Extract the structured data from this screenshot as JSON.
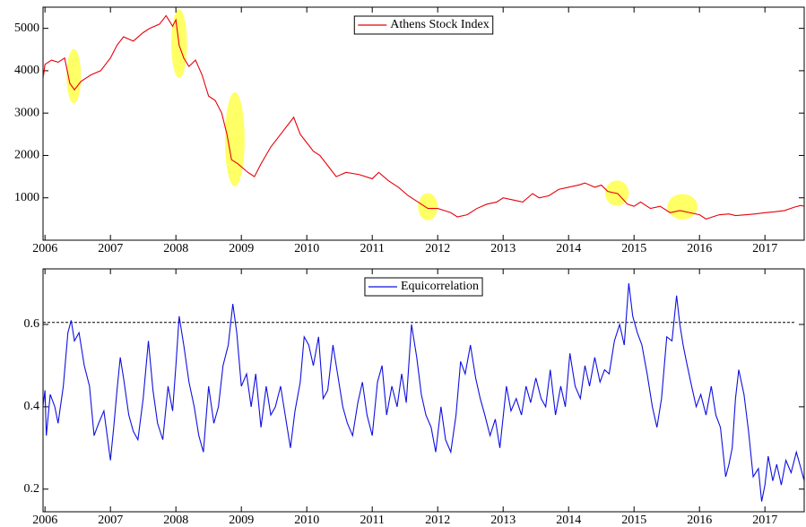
{
  "chart_data": [
    {
      "type": "line",
      "legend": "top",
      "xlim": [
        2005.97,
        2017.6
      ],
      "ylim": [
        0,
        5500
      ],
      "xticks": [
        2006,
        2007,
        2008,
        2009,
        2010,
        2011,
        2012,
        2013,
        2014,
        2015,
        2016,
        2017
      ],
      "yticks": [
        1000,
        2000,
        3000,
        4000,
        5000
      ],
      "x": [
        2005.97,
        2006.0,
        2006.1,
        2006.2,
        2006.3,
        2006.38,
        2006.45,
        2006.55,
        2006.7,
        2006.85,
        2007.0,
        2007.1,
        2007.2,
        2007.35,
        2007.5,
        2007.6,
        2007.75,
        2007.85,
        2007.95,
        2008.0,
        2008.05,
        2008.12,
        2008.2,
        2008.3,
        2008.4,
        2008.5,
        2008.6,
        2008.7,
        2008.78,
        2008.85,
        2008.95,
        2009.1,
        2009.2,
        2009.3,
        2009.45,
        2009.6,
        2009.75,
        2009.8,
        2009.9,
        2010.0,
        2010.1,
        2010.2,
        2010.35,
        2010.45,
        2010.6,
        2010.8,
        2011.0,
        2011.1,
        2011.25,
        2011.4,
        2011.55,
        2011.7,
        2011.85,
        2012.0,
        2012.1,
        2012.2,
        2012.3,
        2012.45,
        2012.6,
        2012.75,
        2012.9,
        2013.0,
        2013.15,
        2013.3,
        2013.45,
        2013.55,
        2013.7,
        2013.85,
        2014.0,
        2014.15,
        2014.25,
        2014.4,
        2014.5,
        2014.6,
        2014.75,
        2014.9,
        2015.0,
        2015.1,
        2015.25,
        2015.4,
        2015.55,
        2015.7,
        2015.85,
        2016.0,
        2016.1,
        2016.2,
        2016.3,
        2016.45,
        2016.55,
        2016.7,
        2016.85,
        2017.0,
        2017.15,
        2017.3,
        2017.45,
        2017.55,
        2017.6
      ],
      "series": [
        {
          "name": "Athens Stock Index",
          "color": "#e8000b",
          "values": [
            3800,
            4150,
            4250,
            4200,
            4300,
            3700,
            3550,
            3750,
            3900,
            4000,
            4300,
            4600,
            4800,
            4700,
            4900,
            5000,
            5100,
            5300,
            5050,
            5200,
            4600,
            4300,
            4100,
            4250,
            3900,
            3400,
            3300,
            3000,
            2500,
            1900,
            1800,
            1600,
            1500,
            1800,
            2200,
            2500,
            2800,
            2900,
            2500,
            2300,
            2100,
            2000,
            1700,
            1500,
            1600,
            1550,
            1450,
            1600,
            1400,
            1250,
            1050,
            900,
            750,
            750,
            700,
            650,
            550,
            600,
            750,
            850,
            900,
            1000,
            950,
            900,
            1100,
            1000,
            1050,
            1200,
            1250,
            1300,
            1350,
            1250,
            1300,
            1150,
            1100,
            850,
            800,
            900,
            750,
            800,
            650,
            700,
            650,
            600,
            500,
            550,
            600,
            620,
            580,
            600,
            620,
            650,
            670,
            700,
            780,
            820,
            800
          ]
        }
      ],
      "highlights": [
        {
          "x": 2006.44,
          "y": 3870,
          "rx": 0.11,
          "ry": 640
        },
        {
          "x": 2008.05,
          "y": 4640,
          "rx": 0.12,
          "ry": 810
        },
        {
          "x": 2008.9,
          "y": 2380,
          "rx": 0.15,
          "ry": 1110
        },
        {
          "x": 2011.85,
          "y": 790,
          "rx": 0.15,
          "ry": 320
        },
        {
          "x": 2014.74,
          "y": 1110,
          "rx": 0.18,
          "ry": 300
        },
        {
          "x": 2015.74,
          "y": 790,
          "rx": 0.23,
          "ry": 300
        }
      ]
    },
    {
      "type": "line",
      "legend": "top",
      "xlim": [
        2005.97,
        2017.6
      ],
      "ylim": [
        0.145,
        0.735
      ],
      "xticks": [
        2006,
        2007,
        2008,
        2009,
        2010,
        2011,
        2012,
        2013,
        2014,
        2015,
        2016,
        2017
      ],
      "yticks": [
        0.2,
        0.4,
        0.6
      ],
      "reference_line": 0.605,
      "x": [
        2005.97,
        2006.0,
        2006.02,
        2006.08,
        2006.15,
        2006.2,
        2006.28,
        2006.35,
        2006.4,
        2006.45,
        2006.52,
        2006.6,
        2006.68,
        2006.75,
        2006.82,
        2006.9,
        2006.95,
        2007.0,
        2007.05,
        2007.1,
        2007.15,
        2007.2,
        2007.28,
        2007.35,
        2007.42,
        2007.5,
        2007.58,
        2007.65,
        2007.72,
        2007.8,
        2007.88,
        2007.95,
        2008.0,
        2008.05,
        2008.12,
        2008.2,
        2008.28,
        2008.35,
        2008.42,
        2008.5,
        2008.58,
        2008.65,
        2008.72,
        2008.8,
        2008.87,
        2008.93,
        2009.0,
        2009.08,
        2009.15,
        2009.22,
        2009.3,
        2009.38,
        2009.45,
        2009.52,
        2009.6,
        2009.68,
        2009.75,
        2009.82,
        2009.9,
        2009.96,
        2010.03,
        2010.1,
        2010.18,
        2010.25,
        2010.32,
        2010.4,
        2010.48,
        2010.55,
        2010.62,
        2010.7,
        2010.78,
        2010.85,
        2010.92,
        2011.0,
        2011.08,
        2011.15,
        2011.22,
        2011.3,
        2011.38,
        2011.45,
        2011.52,
        2011.6,
        2011.68,
        2011.75,
        2011.82,
        2011.9,
        2011.97,
        2012.05,
        2012.12,
        2012.2,
        2012.28,
        2012.35,
        2012.42,
        2012.5,
        2012.58,
        2012.65,
        2012.72,
        2012.8,
        2012.88,
        2012.95,
        2013.05,
        2013.12,
        2013.2,
        2013.28,
        2013.35,
        2013.42,
        2013.5,
        2013.58,
        2013.65,
        2013.72,
        2013.8,
        2013.88,
        2013.95,
        2014.02,
        2014.1,
        2014.18,
        2014.25,
        2014.32,
        2014.4,
        2014.48,
        2014.55,
        2014.62,
        2014.7,
        2014.78,
        2014.85,
        2014.92,
        2014.98,
        2015.05,
        2015.12,
        2015.2,
        2015.28,
        2015.35,
        2015.42,
        2015.5,
        2015.58,
        2015.65,
        2015.7,
        2015.75,
        2015.8,
        2015.88,
        2015.95,
        2016.02,
        2016.1,
        2016.18,
        2016.25,
        2016.32,
        2016.4,
        2016.45,
        2016.5,
        2016.55,
        2016.6,
        2016.68,
        2016.75,
        2016.82,
        2016.9,
        2016.95,
        2017.0,
        2017.05,
        2017.12,
        2017.18,
        2017.25,
        2017.32,
        2017.4,
        2017.48,
        2017.55,
        2017.6
      ],
      "series": [
        {
          "name": "Equicorrelation",
          "color": "#1010e0",
          "values": [
            0.4,
            0.44,
            0.33,
            0.43,
            0.4,
            0.36,
            0.45,
            0.58,
            0.61,
            0.56,
            0.58,
            0.5,
            0.45,
            0.33,
            0.36,
            0.39,
            0.33,
            0.27,
            0.35,
            0.44,
            0.52,
            0.47,
            0.38,
            0.34,
            0.32,
            0.42,
            0.56,
            0.44,
            0.36,
            0.32,
            0.45,
            0.39,
            0.5,
            0.62,
            0.55,
            0.46,
            0.4,
            0.33,
            0.29,
            0.45,
            0.36,
            0.4,
            0.5,
            0.55,
            0.65,
            0.58,
            0.45,
            0.48,
            0.4,
            0.48,
            0.35,
            0.45,
            0.38,
            0.4,
            0.45,
            0.37,
            0.3,
            0.39,
            0.46,
            0.57,
            0.55,
            0.5,
            0.57,
            0.42,
            0.44,
            0.55,
            0.47,
            0.4,
            0.36,
            0.33,
            0.41,
            0.46,
            0.38,
            0.33,
            0.46,
            0.5,
            0.38,
            0.45,
            0.4,
            0.48,
            0.41,
            0.6,
            0.52,
            0.43,
            0.38,
            0.35,
            0.29,
            0.4,
            0.32,
            0.29,
            0.38,
            0.51,
            0.48,
            0.55,
            0.47,
            0.42,
            0.38,
            0.33,
            0.37,
            0.3,
            0.45,
            0.39,
            0.42,
            0.38,
            0.45,
            0.41,
            0.47,
            0.42,
            0.4,
            0.49,
            0.38,
            0.45,
            0.4,
            0.53,
            0.45,
            0.42,
            0.5,
            0.45,
            0.52,
            0.46,
            0.49,
            0.48,
            0.56,
            0.6,
            0.55,
            0.7,
            0.62,
            0.58,
            0.55,
            0.48,
            0.4,
            0.35,
            0.42,
            0.57,
            0.56,
            0.67,
            0.6,
            0.55,
            0.51,
            0.45,
            0.4,
            0.43,
            0.38,
            0.45,
            0.38,
            0.35,
            0.23,
            0.26,
            0.3,
            0.42,
            0.49,
            0.43,
            0.34,
            0.23,
            0.25,
            0.17,
            0.21,
            0.28,
            0.22,
            0.26,
            0.21,
            0.27,
            0.24,
            0.29,
            0.25,
            0.22
          ]
        }
      ]
    }
  ]
}
